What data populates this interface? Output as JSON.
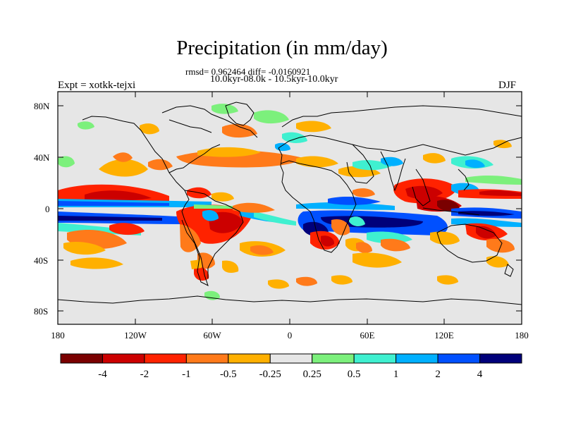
{
  "title": "Precipitation (in mm/day)",
  "stats_line": "rmsd= 0.962464 diff= -0.0160921",
  "period_line": "10.0kyr-08.0k - 10.5kyr-10.0kyr",
  "experiment": "Expt = xotkk-tejxi",
  "season": "DJF",
  "y_ticks": [
    "80N",
    "40N",
    "0",
    "40S",
    "80S"
  ],
  "x_ticks": [
    "180",
    "120W",
    "60W",
    "0",
    "60E",
    "120E",
    "180"
  ],
  "colorbar": {
    "labels": [
      "-4",
      "-2",
      "-1",
      "-0.5",
      "-0.25",
      "0.25",
      "0.5",
      "1",
      "2",
      "4"
    ],
    "colors": [
      "#7a0000",
      "#cc0000",
      "#ff2200",
      "#ff7a1a",
      "#ffb000",
      "#e6e6e6",
      "#7cf07c",
      "#3ff0d0",
      "#00b0ff",
      "#0050ff",
      "#00007a"
    ]
  },
  "background_color": "#e6e6e6"
}
